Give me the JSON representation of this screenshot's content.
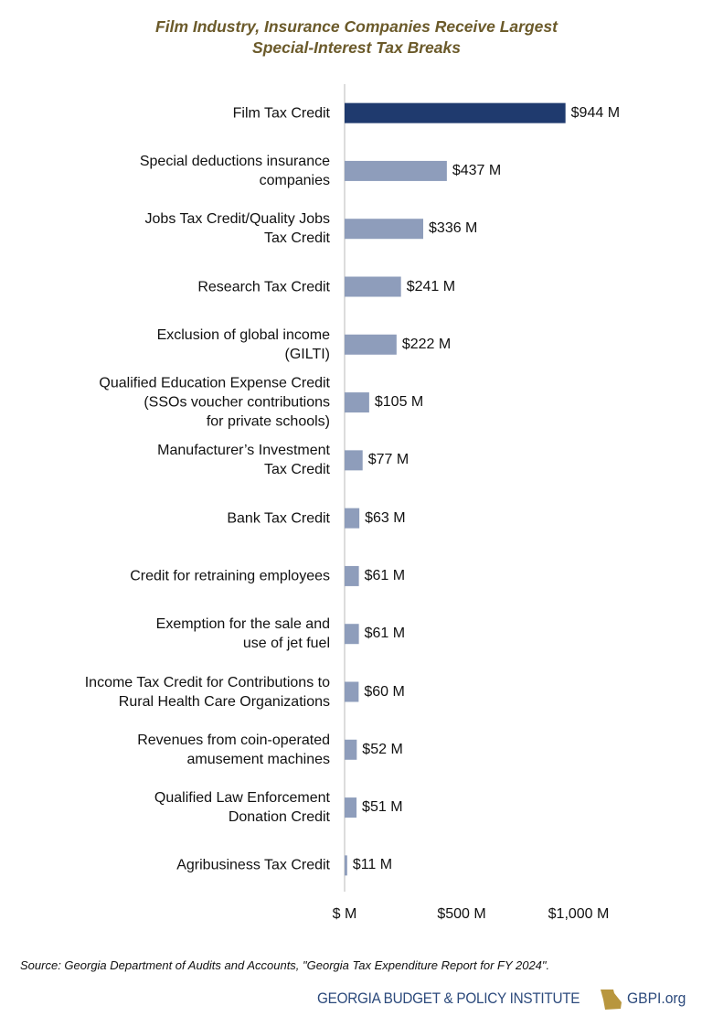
{
  "chart_data": {
    "type": "bar",
    "orientation": "horizontal",
    "title": "Film Industry, Insurance Companies Receive Largest\nSpecial-Interest Tax Breaks",
    "categories": [
      "Film Tax Credit",
      "Special deductions insurance\ncompanies",
      "Jobs Tax Credit/Quality Jobs\nTax Credit",
      "Research Tax Credit",
      "Exclusion of global income\n(GILTI)",
      "Qualified Education Expense Credit\n(SSOs voucher contributions\nfor private schools)",
      "Manufacturer’s Investment\nTax Credit",
      "Bank Tax Credit",
      "Credit for retraining employees",
      "Exemption for the sale and\nuse of jet fuel",
      "Income Tax Credit for Contributions to\nRural Health Care Organizations",
      "Revenues from coin-operated\namusement machines",
      "Qualified Law Enforcement\nDonation Credit",
      "Agribusiness Tax Credit"
    ],
    "values": [
      944,
      437,
      336,
      241,
      222,
      105,
      77,
      63,
      61,
      61,
      60,
      52,
      51,
      11
    ],
    "value_labels": [
      "$944 M",
      "$437 M",
      "$336 M",
      "$241 M",
      "$222 M",
      "$105 M",
      "$77 M",
      "$63 M",
      "$61 M",
      "$61 M",
      "$60 M",
      "$52 M",
      "$51 M",
      "$11 M"
    ],
    "colors": [
      "#1f3a6e",
      "#8e9dbb",
      "#8e9dbb",
      "#8e9dbb",
      "#8e9dbb",
      "#8e9dbb",
      "#8e9dbb",
      "#8e9dbb",
      "#8e9dbb",
      "#8e9dbb",
      "#8e9dbb",
      "#8e9dbb",
      "#8e9dbb",
      "#8e9dbb"
    ],
    "xlim": [
      0,
      1000
    ],
    "xticks": [
      {
        "value": 0,
        "label": "$ M"
      },
      {
        "value": 500,
        "label": "$500 M"
      },
      {
        "value": 1000,
        "label": "$1,000 M"
      }
    ],
    "grid": false
  },
  "source": "Source: Georgia Department of Audits and Accounts, \"Georgia Tax Expenditure Report for FY 2024\".",
  "footer": {
    "organization": "GEORGIA BUDGET & POLICY INSTITUTE",
    "website": "GBPI.org"
  }
}
